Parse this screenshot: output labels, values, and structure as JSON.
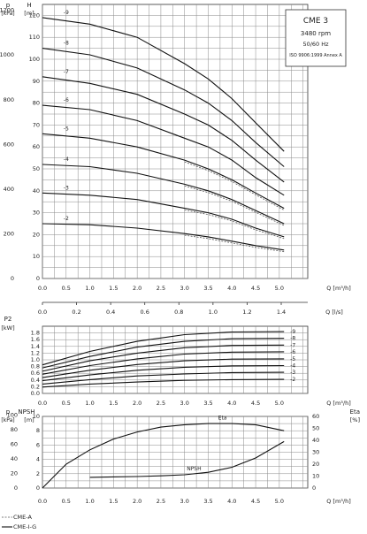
{
  "chart_data": [
    {
      "type": "line",
      "panel": "head",
      "info_box": {
        "title": "CME 3",
        "speed": "3480 rpm",
        "freq": "50/60 Hz",
        "standard": "ISO 9906:1999 Annex A"
      },
      "left_unit": "p",
      "left_unit_bracket": "[kPa]",
      "ylabel": "H",
      "ylabel_unit": "[m]",
      "xlabel": "Q [m³/h]",
      "xlabel2": "Q [l/s]",
      "ylim": [
        0,
        125
      ],
      "y_ticks": [
        0,
        10,
        20,
        30,
        40,
        50,
        60,
        70,
        80,
        90,
        100,
        110,
        120
      ],
      "kpa_ticks": [
        0,
        200,
        400,
        600,
        800,
        1000,
        1200
      ],
      "x_ticks": [
        "0.0",
        "0.5",
        "1.0",
        "1.5",
        "2.0",
        "2.5",
        "3.0",
        "3.5",
        "4.0",
        "4.5",
        "5.0"
      ],
      "x2_ticks": [
        "0.0",
        "0.2",
        "0.4",
        "0.6",
        "0.8",
        "1.0",
        "1.2",
        "1.4"
      ],
      "xlim": [
        0,
        5.6
      ],
      "x": [
        0,
        1,
        2,
        3,
        3.5,
        4,
        4.5,
        5.1
      ],
      "series": [
        {
          "name": "-9",
          "values": [
            119,
            116,
            110,
            98,
            91,
            82,
            71,
            58
          ]
        },
        {
          "name": "-8",
          "values": [
            105,
            102,
            96,
            86,
            80,
            72,
            62,
            51
          ]
        },
        {
          "name": "-7",
          "values": [
            92,
            89,
            84,
            75,
            70,
            63,
            54,
            44
          ]
        },
        {
          "name": "-6",
          "values": [
            79,
            77,
            72,
            64,
            60,
            54,
            46,
            38
          ]
        },
        {
          "name": "-5",
          "values": [
            66,
            64,
            60,
            54,
            50,
            45,
            39,
            32
          ]
        },
        {
          "name": "-4",
          "values": [
            52,
            51,
            48,
            43,
            40,
            36,
            31,
            25
          ]
        },
        {
          "name": "-3",
          "values": [
            39,
            38,
            36,
            32,
            30,
            27,
            23,
            19
          ]
        },
        {
          "name": "-2",
          "values": [
            25,
            24.5,
            23,
            20.5,
            19,
            17,
            15,
            13
          ]
        }
      ]
    },
    {
      "type": "line",
      "panel": "power",
      "ylabel": "P2",
      "ylabel_unit": "[kW]",
      "xlabel": "Q [m³/h]",
      "ylim": [
        0,
        2.0
      ],
      "y_ticks": [
        "0.0",
        "0.2",
        "0.4",
        "0.6",
        "0.8",
        "1.0",
        "1.2",
        "1.4",
        "1.6",
        "1.8"
      ],
      "x_ticks": [
        "0.0",
        "0.5",
        "1.0",
        "1.5",
        "2.0",
        "2.5",
        "3.0",
        "3.5",
        "4.0",
        "4.5",
        "5.0"
      ],
      "xlim": [
        0,
        5.6
      ],
      "x": [
        0,
        1,
        2,
        3,
        4,
        5.1
      ],
      "series": [
        {
          "name": "-9",
          "values": [
            0.85,
            1.25,
            1.55,
            1.75,
            1.83,
            1.84
          ]
        },
        {
          "name": "-8",
          "values": [
            0.76,
            1.1,
            1.38,
            1.55,
            1.63,
            1.64
          ]
        },
        {
          "name": "-7",
          "values": [
            0.66,
            0.97,
            1.2,
            1.36,
            1.43,
            1.44
          ]
        },
        {
          "name": "-6",
          "values": [
            0.57,
            0.83,
            1.03,
            1.17,
            1.23,
            1.24
          ]
        },
        {
          "name": "-5",
          "values": [
            0.47,
            0.69,
            0.86,
            0.97,
            1.02,
            1.03
          ]
        },
        {
          "name": "-4",
          "values": [
            0.38,
            0.55,
            0.69,
            0.78,
            0.82,
            0.83
          ]
        },
        {
          "name": "-3",
          "values": [
            0.28,
            0.41,
            0.52,
            0.58,
            0.62,
            0.63
          ]
        },
        {
          "name": "-2",
          "values": [
            0.19,
            0.28,
            0.34,
            0.39,
            0.41,
            0.42
          ]
        }
      ]
    },
    {
      "type": "line",
      "panel": "npsh-eta",
      "left_unit": "p",
      "left_unit_bracket": "[kPa]",
      "ylabel": "NPSH",
      "ylabel_unit": "[m]",
      "ylabel_right": "Eta",
      "ylabel_right_unit": "[%]",
      "xlabel": "Q [m³/h]",
      "ylim": [
        0,
        10
      ],
      "y_ticks": [
        0,
        2,
        4,
        6,
        8,
        10
      ],
      "kpa_ticks": [
        0,
        20,
        40,
        60,
        80,
        100
      ],
      "eta_ticks": [
        0,
        10,
        20,
        30,
        40,
        50,
        60
      ],
      "x_ticks": [
        "0.0",
        "0.5",
        "1.0",
        "1.5",
        "2.0",
        "2.5",
        "3.0",
        "3.5",
        "4.0",
        "4.5",
        "5.0"
      ],
      "xlim": [
        0,
        5.6
      ],
      "eta": {
        "name": "Eta",
        "x": [
          0,
          0.5,
          1,
          1.5,
          2,
          2.5,
          3,
          3.5,
          4,
          4.5,
          5.1
        ],
        "values": [
          0,
          20,
          32,
          41,
          47,
          51,
          53,
          54,
          54,
          53,
          48
        ]
      },
      "npsh": {
        "name": "NPSH",
        "x": [
          1,
          1.5,
          2,
          2.5,
          3,
          3.5,
          4,
          4.5,
          5.1
        ],
        "values": [
          1.5,
          1.55,
          1.6,
          1.7,
          1.85,
          2.2,
          2.9,
          4.2,
          6.5
        ]
      }
    }
  ],
  "legend": [
    {
      "label": "CME-A",
      "style": "dashed"
    },
    {
      "label": "CME-I-G",
      "style": "solid"
    }
  ]
}
